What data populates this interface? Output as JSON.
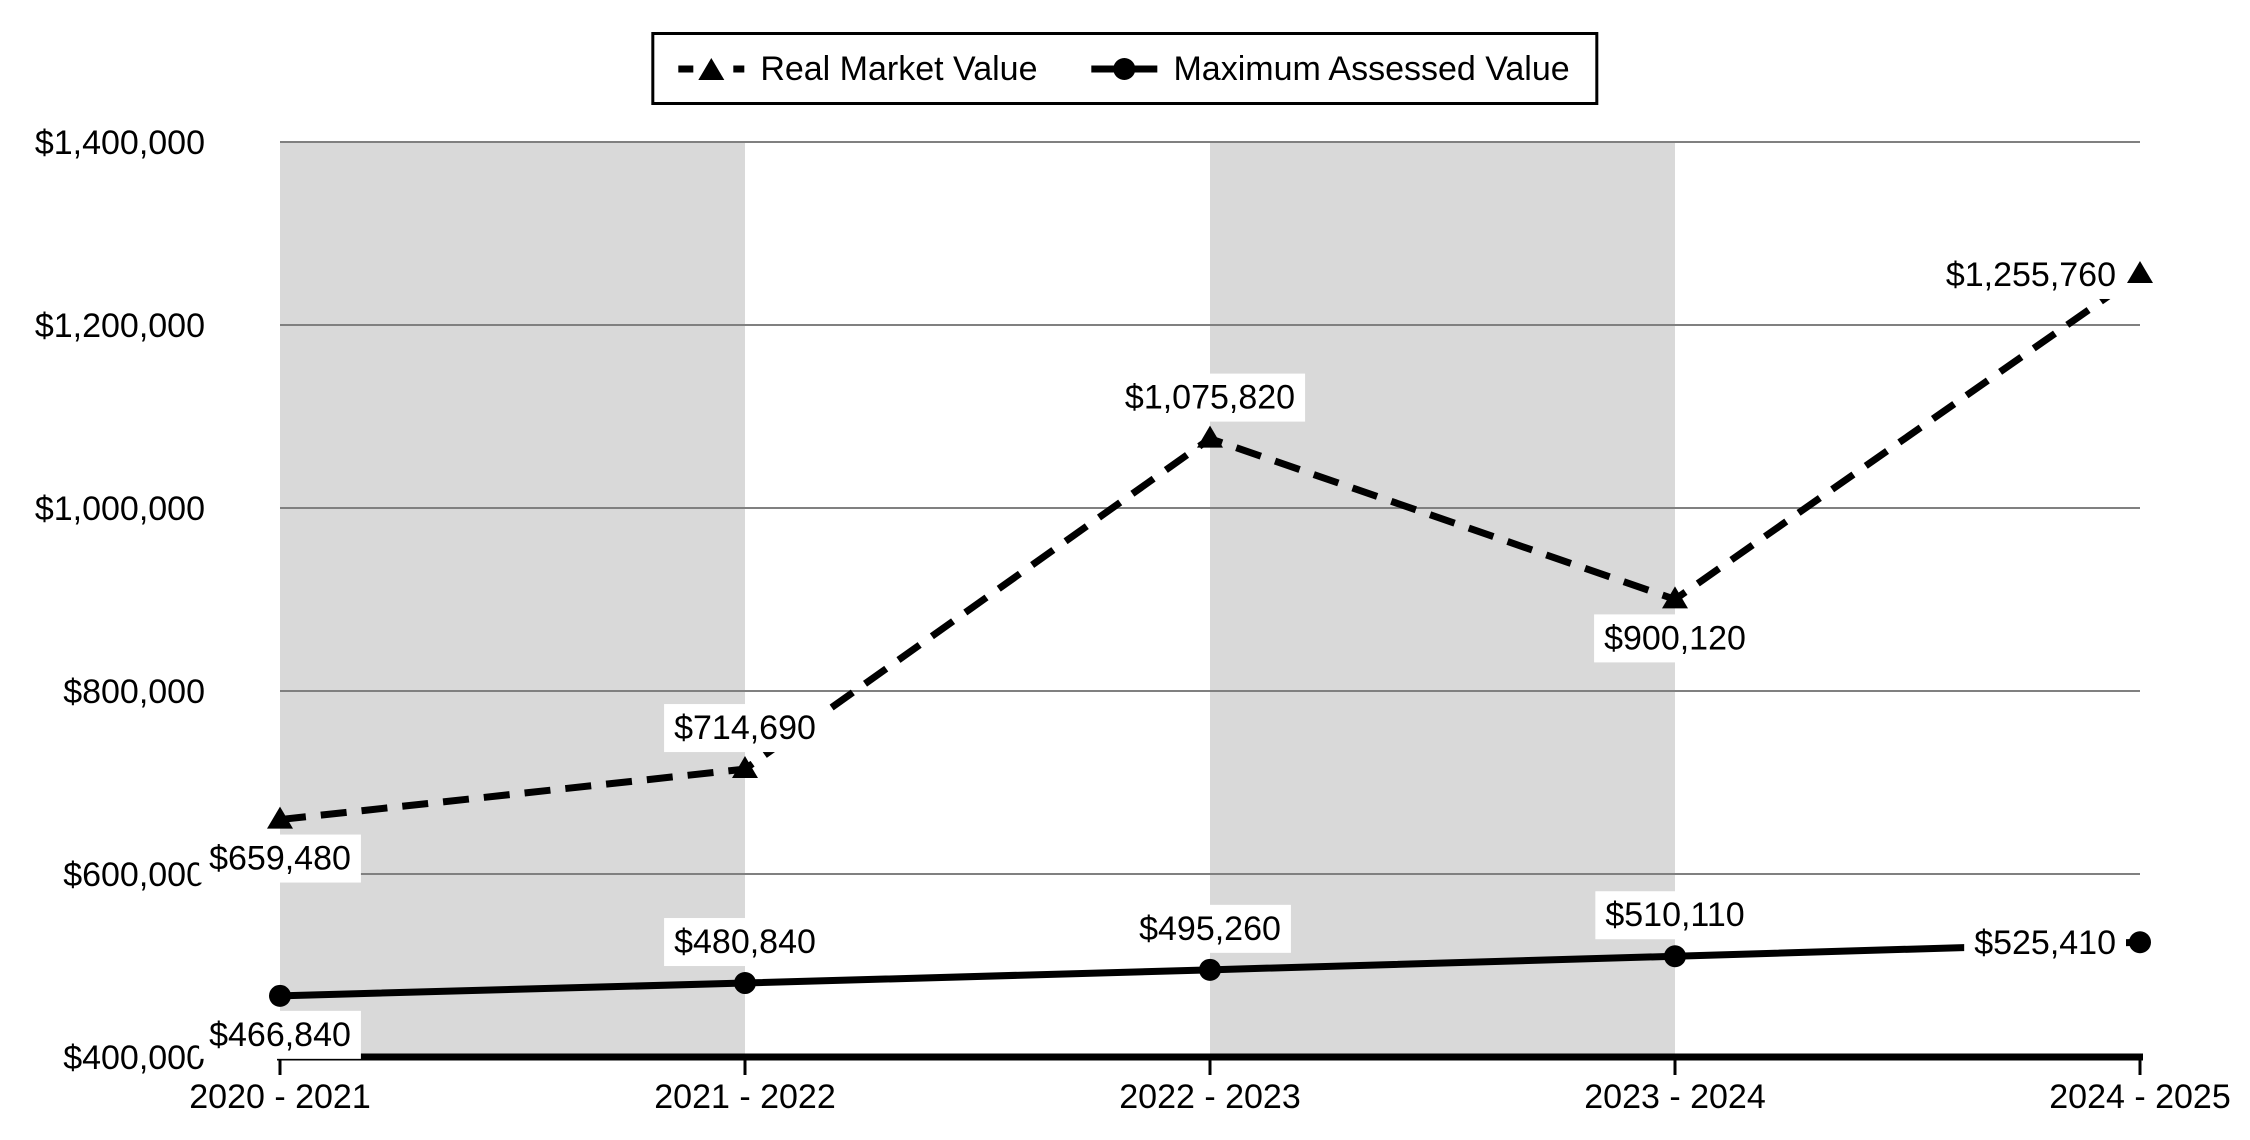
{
  "chart_data": {
    "type": "line",
    "categories": [
      "2020 - 2021",
      "2021 - 2022",
      "2022 - 2023",
      "2023 - 2024",
      "2024 - 2025"
    ],
    "series": [
      {
        "name": "Real Market Value",
        "values": [
          659480,
          714690,
          1075820,
          900120,
          1255760
        ],
        "data_labels": [
          "$659,480",
          "$714,690",
          "$1,075,820",
          "$900,120",
          "$1,255,760"
        ],
        "line_style": "dashed",
        "marker": "triangle",
        "color": "#000000",
        "label_positions": [
          "below",
          "above",
          "above",
          "below",
          "left"
        ]
      },
      {
        "name": "Maximum Assessed Value",
        "values": [
          466840,
          480840,
          495260,
          510110,
          525410
        ],
        "data_labels": [
          "$466,840",
          "$480,840",
          "$495,260",
          "$510,110",
          "$525,410"
        ],
        "line_style": "solid",
        "marker": "circle",
        "color": "#000000",
        "label_positions": [
          "below",
          "above",
          "above",
          "above",
          "left"
        ]
      }
    ],
    "y_axis": {
      "min": 400000,
      "max": 1400000,
      "step": 200000,
      "tick_labels": [
        "$400,000",
        "$600,000",
        "$800,000",
        "$1,000,000",
        "$1,200,000",
        "$1,400,000"
      ]
    },
    "x_axis": {
      "tick_labels": [
        "2020 - 2021",
        "2021 - 2022",
        "2022 - 2023",
        "2023 - 2024",
        "2024 - 2025"
      ]
    },
    "title": "",
    "xlabel": "",
    "ylabel": "",
    "legend_position": "top-center",
    "grid": true,
    "plot_bands": {
      "index_ranges": [
        [
          0,
          1
        ],
        [
          2,
          3
        ]
      ],
      "color": "#d9d9d9"
    },
    "colors": {
      "background": "#ffffff",
      "gridline": "#808080",
      "axis": "#000000",
      "series": "#000000",
      "data_label_background": "#ffffff"
    }
  }
}
